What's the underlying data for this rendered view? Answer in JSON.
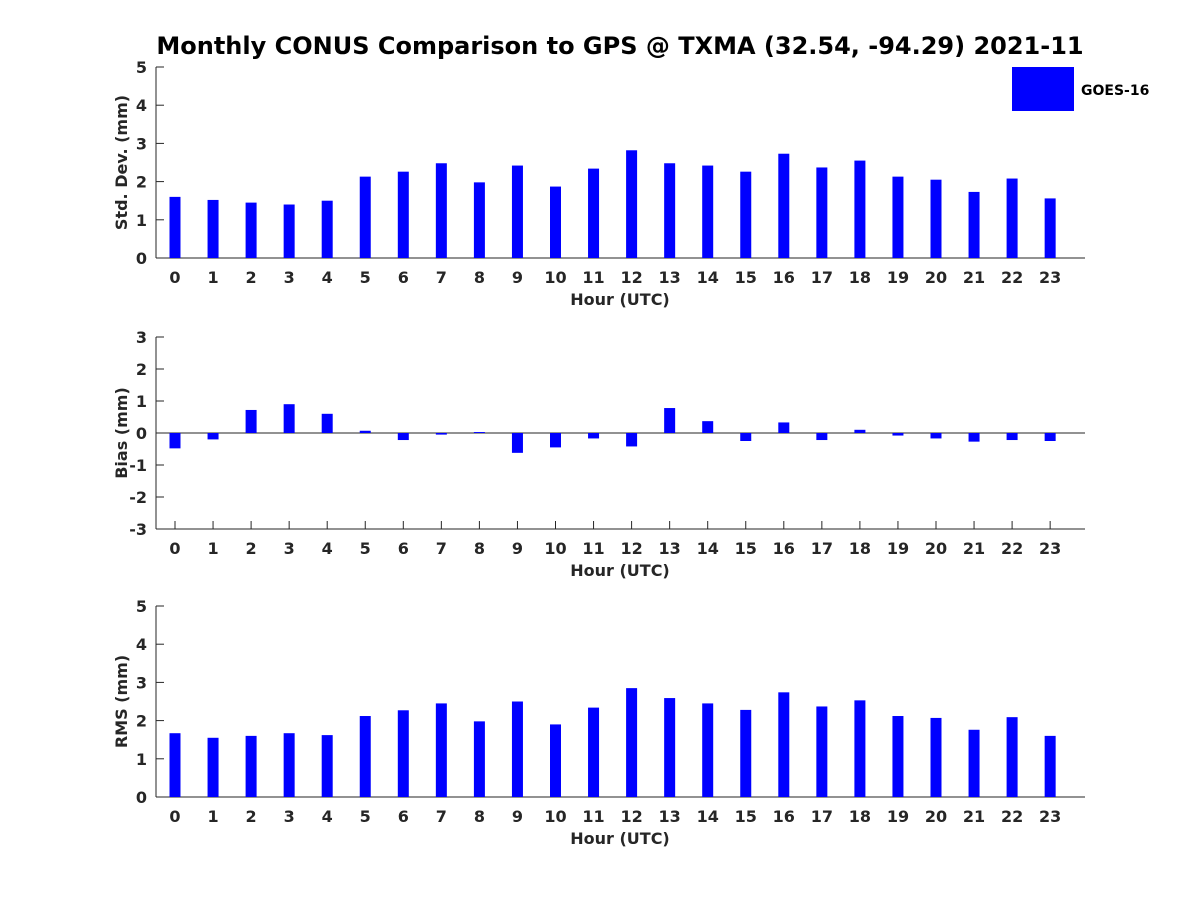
{
  "title": "Monthly CONUS Comparison to GPS @ TXMA (32.54, -94.29) 2021-11",
  "legend": {
    "label": "GOES-16",
    "color": "#0000ff",
    "placement": "top-right"
  },
  "chart_data": [
    {
      "type": "bar",
      "xlabel": "Hour (UTC)",
      "ylabel": "Std. Dev. (mm)",
      "ylim": [
        0,
        5
      ],
      "yticks": [
        0,
        1,
        2,
        3,
        4,
        5
      ],
      "categories": [
        "0",
        "1",
        "2",
        "3",
        "4",
        "5",
        "6",
        "7",
        "8",
        "9",
        "10",
        "11",
        "12",
        "13",
        "14",
        "15",
        "16",
        "17",
        "18",
        "19",
        "20",
        "21",
        "22",
        "23"
      ],
      "series": [
        {
          "name": "GOES-16",
          "color": "#0000ff",
          "values": [
            1.6,
            1.52,
            1.45,
            1.4,
            1.5,
            2.13,
            2.26,
            2.48,
            1.98,
            2.42,
            1.87,
            2.34,
            2.82,
            2.48,
            2.42,
            2.26,
            2.73,
            2.37,
            2.55,
            2.13,
            2.05,
            1.73,
            2.08,
            1.56
          ]
        }
      ]
    },
    {
      "type": "bar",
      "xlabel": "Hour (UTC)",
      "ylabel": "Bias (mm)",
      "ylim": [
        -3,
        3
      ],
      "yticks": [
        -3,
        -2,
        -1,
        0,
        1,
        2,
        3
      ],
      "zero_line": true,
      "categories": [
        "0",
        "1",
        "2",
        "3",
        "4",
        "5",
        "6",
        "7",
        "8",
        "9",
        "10",
        "11",
        "12",
        "13",
        "14",
        "15",
        "16",
        "17",
        "18",
        "19",
        "20",
        "21",
        "22",
        "23"
      ],
      "series": [
        {
          "name": "GOES-16",
          "color": "#0000ff",
          "values": [
            -0.48,
            -0.2,
            0.72,
            0.9,
            0.6,
            0.07,
            -0.22,
            -0.05,
            0.03,
            -0.62,
            -0.45,
            -0.17,
            -0.42,
            0.78,
            0.37,
            -0.25,
            0.33,
            -0.22,
            0.1,
            -0.08,
            -0.17,
            -0.27,
            -0.22,
            -0.25
          ]
        }
      ]
    },
    {
      "type": "bar",
      "xlabel": "Hour (UTC)",
      "ylabel": "RMS (mm)",
      "ylim": [
        0,
        5
      ],
      "yticks": [
        0,
        1,
        2,
        3,
        4,
        5
      ],
      "categories": [
        "0",
        "1",
        "2",
        "3",
        "4",
        "5",
        "6",
        "7",
        "8",
        "9",
        "10",
        "11",
        "12",
        "13",
        "14",
        "15",
        "16",
        "17",
        "18",
        "19",
        "20",
        "21",
        "22",
        "23"
      ],
      "series": [
        {
          "name": "GOES-16",
          "color": "#0000ff",
          "values": [
            1.67,
            1.55,
            1.6,
            1.67,
            1.62,
            2.12,
            2.27,
            2.45,
            1.98,
            2.5,
            1.9,
            2.34,
            2.85,
            2.59,
            2.45,
            2.28,
            2.74,
            2.37,
            2.53,
            2.12,
            2.07,
            1.76,
            2.09,
            1.6
          ]
        }
      ]
    }
  ]
}
